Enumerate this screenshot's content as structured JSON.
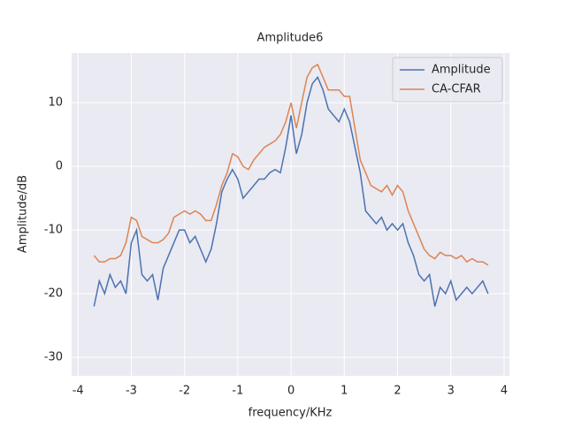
{
  "chart_data": {
    "type": "line",
    "title": "Amplitude6",
    "xlabel": "frequency/KHz",
    "ylabel": "Amplitude/dB",
    "x": [
      -3.7,
      -3.6,
      -3.5,
      -3.4,
      -3.3,
      -3.2,
      -3.1,
      -3.0,
      -2.9,
      -2.8,
      -2.7,
      -2.6,
      -2.5,
      -2.4,
      -2.3,
      -2.2,
      -2.1,
      -2.0,
      -1.9,
      -1.8,
      -1.7,
      -1.6,
      -1.5,
      -1.4,
      -1.3,
      -1.2,
      -1.1,
      -1.0,
      -0.9,
      -0.8,
      -0.7,
      -0.6,
      -0.5,
      -0.4,
      -0.3,
      -0.2,
      -0.1,
      0.0,
      0.1,
      0.2,
      0.3,
      0.4,
      0.5,
      0.6,
      0.7,
      0.8,
      0.9,
      1.0,
      1.1,
      1.2,
      1.3,
      1.4,
      1.5,
      1.6,
      1.7,
      1.8,
      1.9,
      2.0,
      2.1,
      2.2,
      2.3,
      2.4,
      2.5,
      2.6,
      2.7,
      2.8,
      2.9,
      3.0,
      3.1,
      3.2,
      3.3,
      3.4,
      3.5,
      3.6,
      3.7
    ],
    "series": [
      {
        "name": "Amplitude",
        "color": "#4c72b0",
        "values": [
          -22,
          -18,
          -20,
          -17,
          -19,
          -18,
          -20,
          -12,
          -10,
          -17,
          -18,
          -17,
          -21,
          -16,
          -14,
          -12,
          -10,
          -10,
          -12,
          -11,
          -13,
          -15,
          -13,
          -9,
          -4,
          -2,
          -0.5,
          -2,
          -5,
          -4,
          -3,
          -2,
          -2,
          -1,
          -0.5,
          -1,
          3,
          8,
          2,
          5,
          10,
          13,
          14,
          12,
          9,
          8,
          7,
          9,
          7,
          3,
          -1,
          -7,
          -8,
          -9,
          -8,
          -10,
          -9,
          -10,
          -9,
          -12,
          -14,
          -17,
          -18,
          -17,
          -22,
          -19,
          -20,
          -18,
          -21,
          -20,
          -19,
          -20,
          -19,
          -18,
          -20
        ]
      },
      {
        "name": "CA-CFAR",
        "color": "#dd8452",
        "values": [
          -14,
          -15,
          -15,
          -14.5,
          -14.5,
          -14,
          -12,
          -8,
          -8.5,
          -11,
          -11.5,
          -12,
          -12,
          -11.5,
          -10.5,
          -8,
          -7.5,
          -7,
          -7.5,
          -7,
          -7.5,
          -8.5,
          -8.5,
          -6,
          -3,
          -1,
          2,
          1.5,
          0,
          -0.5,
          1,
          2,
          3,
          3.5,
          4,
          5,
          7,
          10,
          6,
          10,
          14,
          15.5,
          16,
          14,
          12,
          12,
          12,
          11,
          11,
          6,
          1,
          -1,
          -3,
          -3.5,
          -4,
          -3,
          -4.5,
          -3,
          -4,
          -7,
          -9,
          -11,
          -13,
          -14,
          -14.5,
          -13.5,
          -14,
          -14,
          -14.5,
          -14,
          -15,
          -14.5,
          -15,
          -15,
          -15.5
        ]
      }
    ],
    "xlim": [
      -4.12,
      4.1
    ],
    "ylim": [
      -32.9,
      17.8
    ],
    "xticks": [
      -4,
      -3,
      -2,
      -1,
      0,
      1,
      2,
      3,
      4
    ],
    "yticks": [
      -30,
      -20,
      -10,
      0,
      10
    ],
    "grid": true,
    "legend": "upper right"
  }
}
